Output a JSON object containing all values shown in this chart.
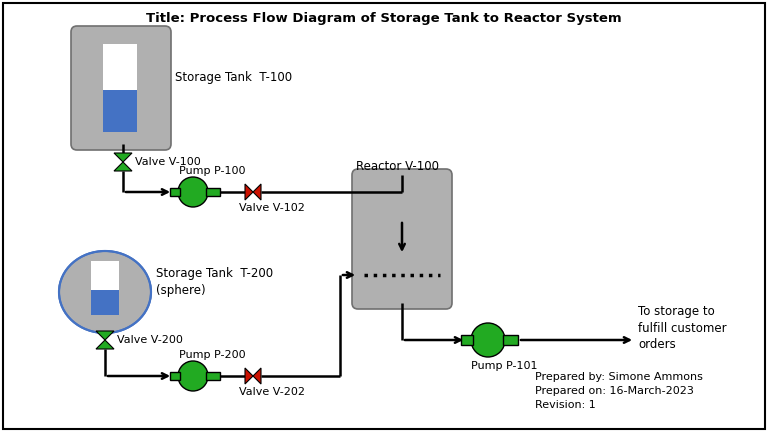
{
  "title": "Title: Process Flow Diagram of Storage Tank to Reactor System",
  "title_fontsize": 9.5,
  "background_color": "#ffffff",
  "gray": "#b0b0b0",
  "dark_gray": "#707070",
  "blue": "#4472c4",
  "green": "#22aa22",
  "red": "#cc1100",
  "white": "#ffffff",
  "black": "#000000",
  "prepared_by": "Prepared by: Simone Ammons",
  "prepared_on": "Prepared on: 16-March-2023",
  "revision": "Revision: 1",
  "storage_tank_t100_label": "Storage Tank  T-100",
  "storage_tank_t200_label": "Storage Tank  T-200\n(sphere)",
  "valve_v100_label": "Valve V-100",
  "valve_v102_label": "Valve V-102",
  "valve_v200_label": "Valve V-200",
  "valve_v202_label": "Valve V-202",
  "pump_p100_label": "Pump P-100",
  "pump_p200_label": "Pump P-200",
  "pump_p101_label": "Pump P-101",
  "reactor_label": "Reactor V-100",
  "destination_label": "To storage to\nfulfill customer\norders"
}
